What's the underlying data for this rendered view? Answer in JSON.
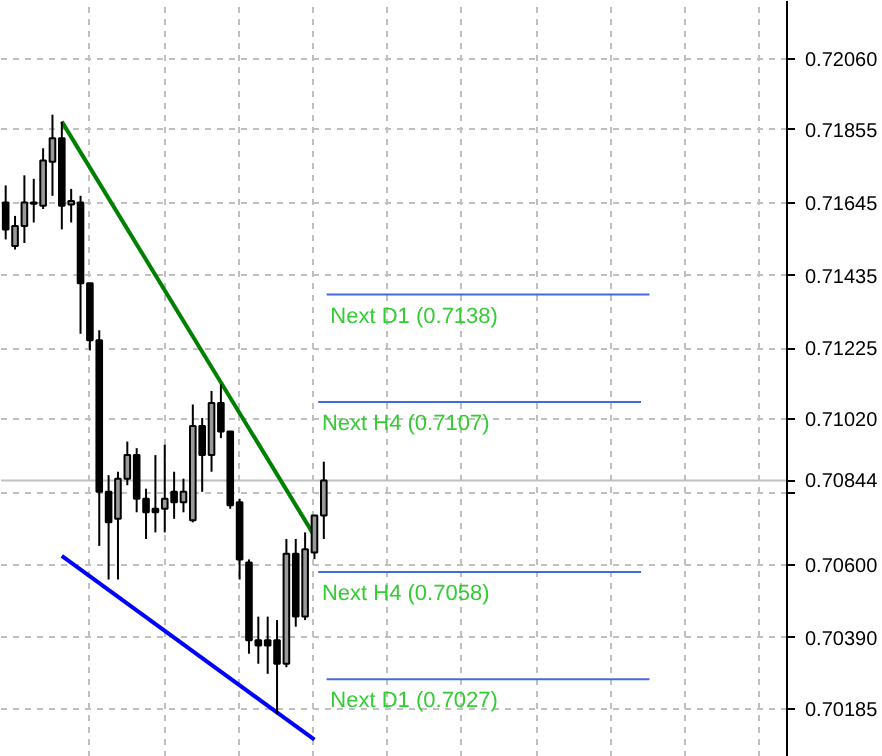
{
  "chart_data": {
    "type": "candlestick",
    "categories": [
      null,
      null,
      null,
      null,
      null,
      null,
      null,
      null,
      null,
      null,
      null,
      null,
      null,
      null,
      null,
      null,
      null,
      null,
      null,
      null,
      null,
      null,
      null,
      null,
      null,
      null,
      null,
      null,
      null,
      null,
      null,
      null,
      null,
      null,
      null,
      null,
      null,
      null,
      null,
      null,
      null,
      null,
      null,
      null,
      null,
      null,
      null,
      null,
      null,
      null,
      null,
      null,
      null,
      null,
      null,
      null,
      null,
      null,
      null,
      null,
      null,
      null,
      null,
      null,
      null,
      null,
      null,
      null,
      null,
      null,
      null,
      null,
      null,
      null,
      null,
      null,
      null,
      null,
      null,
      null,
      null,
      null,
      null,
      null
    ],
    "ohlc": [
      [
        0.71646,
        0.71695,
        0.71539,
        0.71568
      ],
      [
        0.7152,
        0.71607,
        0.7151,
        0.71578
      ],
      [
        0.71578,
        0.71724,
        0.71529,
        0.71646
      ],
      [
        0.71642,
        0.71714,
        0.71588,
        0.71646
      ],
      [
        0.71636,
        0.71802,
        0.71627,
        0.71767
      ],
      [
        0.71763,
        0.71899,
        0.71665,
        0.71831
      ],
      [
        0.71831,
        0.71879,
        0.71568,
        0.71636
      ],
      [
        0.7164,
        0.71685,
        0.71588,
        0.7165
      ],
      [
        0.71646,
        0.71665,
        0.71267,
        0.71413
      ],
      [
        0.71413,
        0.71413,
        0.71219,
        0.71248
      ],
      [
        0.71248,
        0.71277,
        0.70655,
        0.70811
      ],
      [
        0.70811,
        0.70859,
        0.70558,
        0.70723
      ],
      [
        0.70733,
        0.70869,
        0.70558,
        0.70849
      ],
      [
        0.70849,
        0.70956,
        0.7083,
        0.70917
      ],
      [
        0.70917,
        0.70937,
        0.70752,
        0.70791
      ],
      [
        0.70791,
        0.7082,
        0.70675,
        0.70752
      ],
      [
        0.70762,
        0.70917,
        0.70694,
        0.70752
      ],
      [
        0.70762,
        0.70947,
        0.70694,
        0.70791
      ],
      [
        0.70811,
        0.70869,
        0.70733,
        0.70781
      ],
      [
        0.70781,
        0.70849,
        0.70752,
        0.70811
      ],
      [
        0.70729,
        0.71063,
        0.70723,
        0.71001
      ],
      [
        0.71001,
        0.71024,
        0.70811,
        0.70917
      ],
      [
        0.70917,
        0.71102,
        0.70869,
        0.71067
      ],
      [
        0.71067,
        0.71121,
        0.70966,
        0.70985
      ],
      [
        0.70985,
        0.70985,
        0.70762,
        0.70772
      ],
      [
        0.70781,
        0.70791,
        0.70558,
        0.70616
      ],
      [
        0.70607,
        0.70616,
        0.70344,
        0.70383
      ],
      [
        0.70383,
        0.70451,
        0.70315,
        0.70368
      ],
      [
        0.70383,
        0.70451,
        0.70286,
        0.70368
      ],
      [
        0.70383,
        0.70441,
        0.70169,
        0.70315
      ],
      [
        0.70315,
        0.70675,
        0.70305,
        0.70632
      ],
      [
        0.70632,
        0.70675,
        0.70422,
        0.70451
      ],
      [
        0.70451,
        0.70694,
        0.70441,
        0.70645
      ],
      [
        0.70636,
        0.70743,
        0.70617,
        0.70743
      ],
      [
        0.70743,
        0.70898,
        0.70675,
        0.70844
      ],
      null,
      null,
      null,
      null,
      null,
      null,
      null,
      null,
      null,
      null,
      null,
      null,
      null,
      null,
      null,
      null,
      null,
      null,
      null,
      null,
      null,
      null,
      null,
      null,
      null,
      null,
      null,
      null,
      null,
      null,
      null,
      null,
      null,
      null,
      null,
      null,
      null,
      null,
      null,
      null,
      null,
      null,
      null,
      null,
      null,
      null,
      null,
      null,
      null
    ],
    "series": [
      {
        "type": "line",
        "color": "#008000",
        "values": [
          null,
          null,
          null,
          null,
          null,
          null,
          0.71879,
          null,
          null,
          null,
          null,
          null,
          null,
          null,
          null,
          null,
          null,
          null,
          null,
          null,
          null,
          null,
          null,
          null,
          null,
          null,
          null,
          null,
          null,
          null,
          null,
          null,
          null,
          0.70684,
          null,
          null,
          null,
          null,
          null,
          null,
          null,
          null,
          null,
          null,
          null,
          null,
          null,
          null,
          null,
          null,
          null,
          null,
          null,
          null,
          null,
          null,
          null,
          null,
          null,
          null,
          null,
          null,
          null,
          null,
          null,
          null,
          null,
          null,
          null,
          null,
          null,
          null,
          null,
          null,
          null,
          null,
          null,
          null,
          null,
          null,
          null,
          null,
          null,
          null
        ]
      },
      {
        "type": "line",
        "color": "#0000ff",
        "values": [
          null,
          null,
          null,
          null,
          null,
          null,
          0.70626,
          null,
          null,
          null,
          null,
          null,
          null,
          null,
          null,
          null,
          null,
          null,
          null,
          null,
          null,
          null,
          null,
          null,
          null,
          null,
          null,
          null,
          null,
          null,
          null,
          null,
          null,
          0.70096,
          null,
          null,
          null,
          null,
          null,
          null,
          null,
          null,
          null,
          null,
          null,
          null,
          null,
          null,
          null,
          null,
          null,
          null,
          null,
          null,
          null,
          null,
          null,
          null,
          null,
          null,
          null,
          null,
          null,
          null,
          null,
          null,
          null,
          null,
          null,
          null,
          null,
          null,
          null,
          null,
          null,
          null,
          null,
          null,
          null,
          null,
          null,
          null,
          null,
          null
        ]
      }
    ],
    "ref_lines": [
      {
        "axis": "y",
        "value": 0.70844,
        "label": "0.70844",
        "color": "#c0c0c0"
      },
      {
        "axis": "y",
        "value": 0.7138,
        "label": "Next D1 (0.7138)",
        "color": "#4169e1"
      },
      {
        "axis": "y",
        "value": 0.7107,
        "label": "Next H4 (0.7107)",
        "color": "#4169e1"
      },
      {
        "axis": "y",
        "value": 0.7058,
        "label": "Next H4 (0.7058)",
        "color": "#4169e1"
      },
      {
        "axis": "y",
        "value": 0.7027,
        "label": "Next D1 (0.7027)",
        "color": "#4169e1"
      }
    ],
    "ylim": [
      0.70046,
      0.72227
    ],
    "yticks": [
      {
        "value": 0.70185,
        "label": "0.70185"
      },
      {
        "value": 0.7039,
        "label": "0.70390"
      },
      {
        "value": 0.706,
        "label": "0.70600"
      },
      {
        "value": 0.7081,
        "label": null
      },
      {
        "value": 0.7102,
        "label": "0.71020"
      },
      {
        "value": 0.71225,
        "label": "0.71225"
      },
      {
        "value": 0.71435,
        "label": "0.71435"
      },
      {
        "value": 0.71645,
        "label": "0.71645"
      },
      {
        "value": 0.71855,
        "label": "0.71855"
      },
      {
        "value": 0.7206,
        "label": "0.72060"
      }
    ],
    "tick_labels": "y",
    "grid": true
  }
}
